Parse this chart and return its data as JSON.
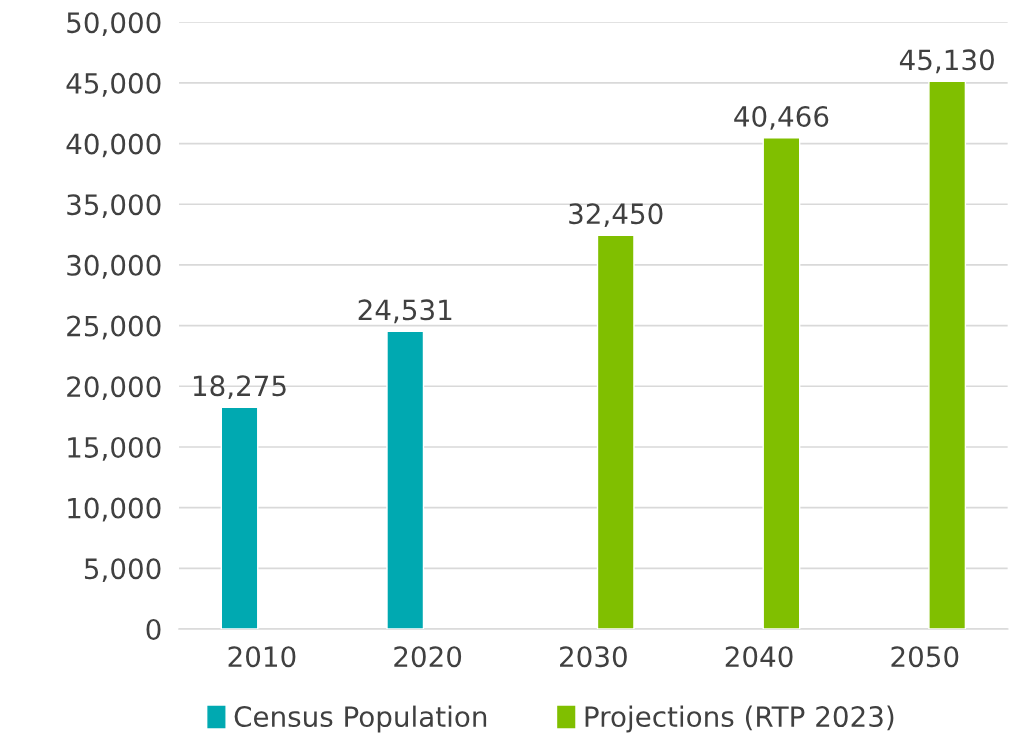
{
  "chart_data": {
    "type": "bar",
    "categories": [
      "2010",
      "2020",
      "2030",
      "2040",
      "2050"
    ],
    "series": [
      {
        "name": "Census Population",
        "color": "#00a9b1",
        "values": [
          18275,
          24531,
          null,
          null,
          null
        ]
      },
      {
        "name": "Projections (RTP 2023)",
        "color": "#80bf00",
        "values": [
          null,
          null,
          32450,
          40466,
          45130
        ]
      }
    ],
    "ylim": [
      0,
      50000
    ],
    "yticks": [
      {
        "value": 0,
        "label": "0"
      },
      {
        "value": 5000,
        "label": "5,000"
      },
      {
        "value": 10000,
        "label": "10,000"
      },
      {
        "value": 15000,
        "label": "15,000"
      },
      {
        "value": 20000,
        "label": "20,000"
      },
      {
        "value": 25000,
        "label": "25,000"
      },
      {
        "value": 30000,
        "label": "30,000"
      },
      {
        "value": 35000,
        "label": "35,000"
      },
      {
        "value": 40000,
        "label": "40,000"
      },
      {
        "value": 45000,
        "label": "45,000"
      },
      {
        "value": 50000,
        "label": "50,000"
      }
    ],
    "value_labels": [
      [
        "18,275",
        "24,531",
        null,
        null,
        null
      ],
      [
        null,
        null,
        "32,450",
        "40,466",
        "45,130"
      ]
    ],
    "grid": "y",
    "legend": "bottom"
  }
}
